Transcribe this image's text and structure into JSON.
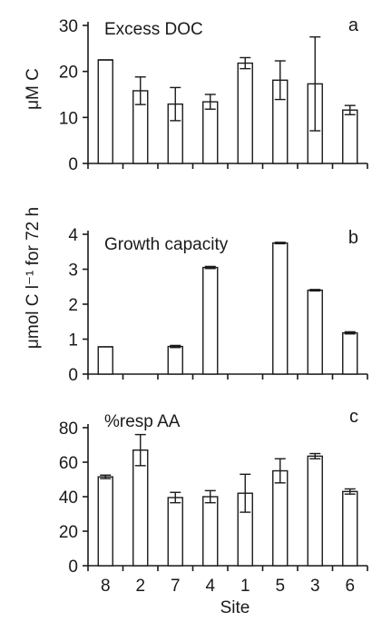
{
  "chart_data": [
    {
      "id": "a",
      "type": "bar",
      "letter": "a",
      "title": "Excess DOC",
      "ylabel": "μM C",
      "xlabel": "",
      "ylim": [
        0,
        30
      ],
      "yticks": [
        "0",
        "10",
        "20",
        "30"
      ],
      "categories": [
        "8",
        "2",
        "7",
        "4",
        "1",
        "5",
        "3",
        "6"
      ],
      "values": [
        22.5,
        15.8,
        12.9,
        13.4,
        21.8,
        18.1,
        17.3,
        11.6
      ],
      "errors": [
        0,
        3.0,
        3.6,
        1.6,
        1.2,
        4.2,
        10.2,
        1.0
      ]
    },
    {
      "id": "b",
      "type": "bar",
      "letter": "b",
      "title": "Growth capacity",
      "ylabel": "μmol C l⁻¹ for 72 h",
      "xlabel": "",
      "ylim": [
        0,
        4
      ],
      "yticks": [
        "0",
        "1",
        "2",
        "3",
        "4"
      ],
      "categories": [
        "8",
        "2",
        "7",
        "4",
        "1",
        "5",
        "3",
        "6"
      ],
      "values": [
        0.78,
        null,
        0.79,
        3.05,
        null,
        3.75,
        2.4,
        1.18
      ],
      "errors": [
        0,
        0,
        0.03,
        0.03,
        0,
        0.02,
        0.02,
        0.03
      ]
    },
    {
      "id": "c",
      "type": "bar",
      "letter": "c",
      "title": "%resp AA",
      "ylabel": "",
      "xlabel": "Site",
      "ylim": [
        0,
        80
      ],
      "yticks": [
        "0",
        "20",
        "40",
        "60",
        "80"
      ],
      "categories": [
        "8",
        "2",
        "7",
        "4",
        "1",
        "5",
        "3",
        "6"
      ],
      "values": [
        51.5,
        67,
        39.5,
        40,
        42,
        55,
        63.5,
        43
      ],
      "errors": [
        1,
        9,
        3,
        3.5,
        11,
        7,
        1.5,
        1.5
      ]
    }
  ]
}
